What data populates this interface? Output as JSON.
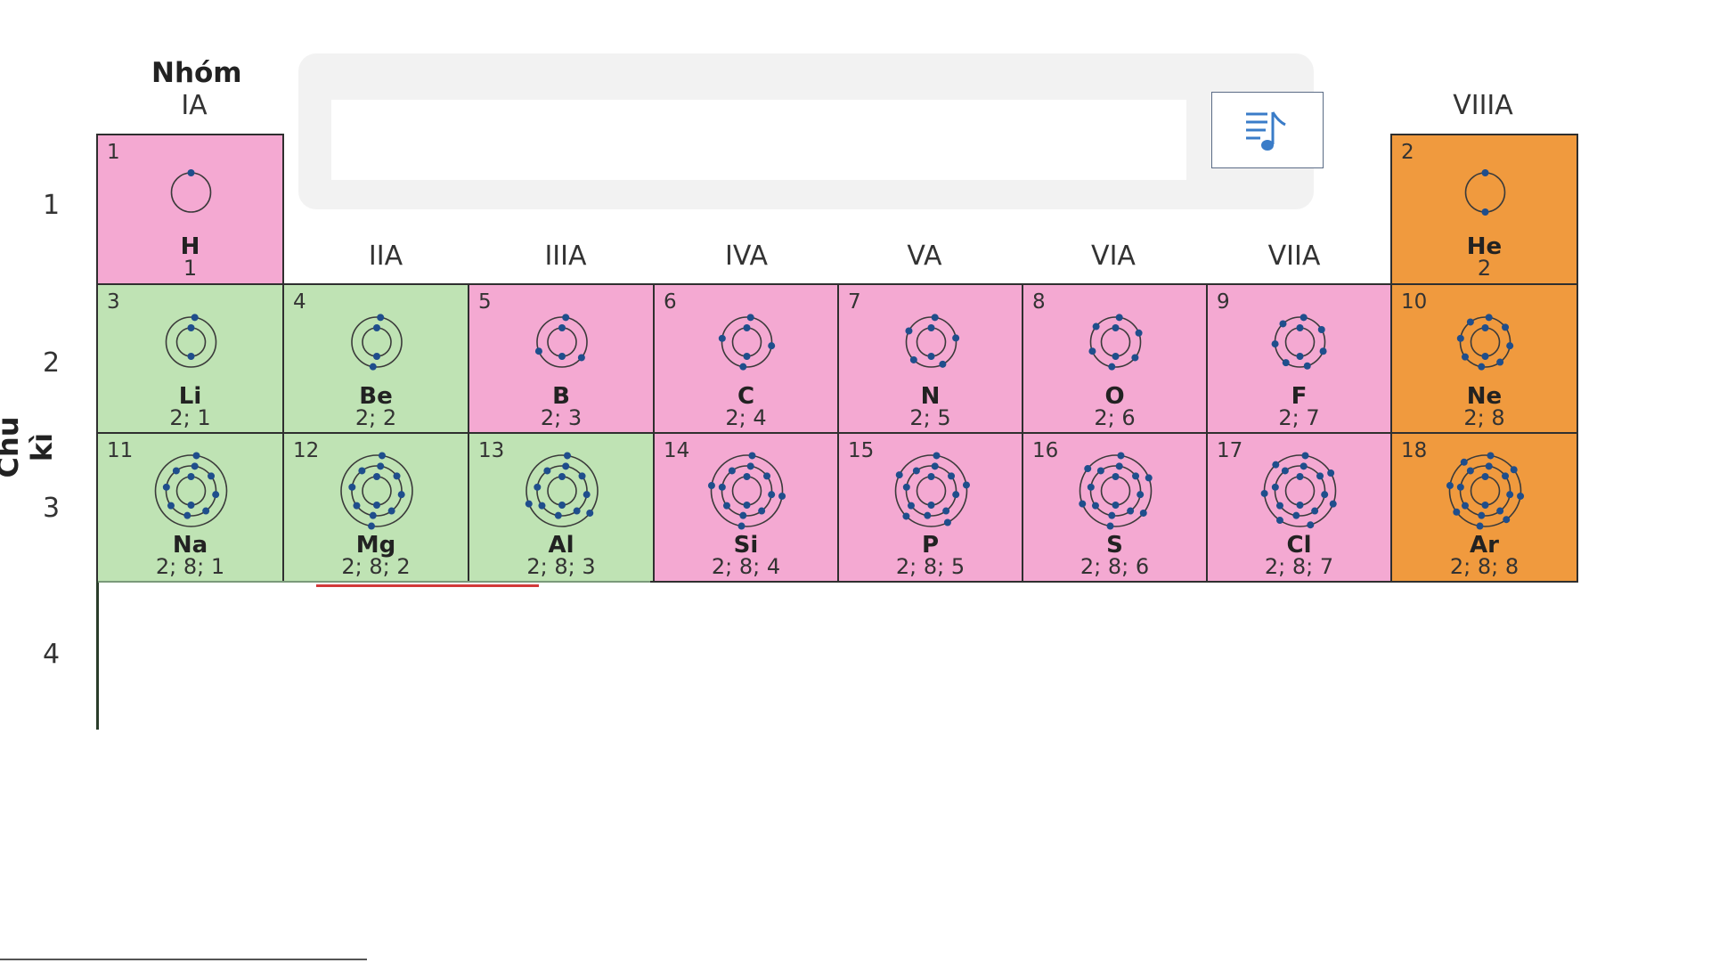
{
  "headers": {
    "group_word": "Nhóm",
    "period_word": "Chu kì"
  },
  "groups": [
    "IA",
    "IIA",
    "IIIA",
    "IVA",
    "VA",
    "VIA",
    "VIIA",
    "VIIIA"
  ],
  "periods": [
    "1",
    "2",
    "3",
    "4"
  ],
  "colors": {
    "s_block": "#bfe3b4",
    "p_block": "#f4a9d2",
    "noble": "#f09a3e",
    "hydrogen": "#f4a9d2",
    "electron": "#1f4e8c",
    "shell": "#3a3a3a"
  },
  "audio_button": {
    "icon": "audio-playlist-icon"
  },
  "elements": [
    {
      "z": "1",
      "symbol": "H",
      "config": "1",
      "period": 1,
      "group": 1,
      "color": "hydrogen"
    },
    {
      "z": "2",
      "symbol": "He",
      "config": "2",
      "period": 1,
      "group": 8,
      "color": "noble"
    },
    {
      "z": "3",
      "symbol": "Li",
      "config": "2; 1",
      "period": 2,
      "group": 1,
      "color": "s_block"
    },
    {
      "z": "4",
      "symbol": "Be",
      "config": "2; 2",
      "period": 2,
      "group": 2,
      "color": "s_block"
    },
    {
      "z": "5",
      "symbol": "B",
      "config": "2; 3",
      "period": 2,
      "group": 3,
      "color": "p_block"
    },
    {
      "z": "6",
      "symbol": "C",
      "config": "2; 4",
      "period": 2,
      "group": 4,
      "color": "p_block"
    },
    {
      "z": "7",
      "symbol": "N",
      "config": "2; 5",
      "period": 2,
      "group": 5,
      "color": "p_block"
    },
    {
      "z": "8",
      "symbol": "O",
      "config": "2; 6",
      "period": 2,
      "group": 6,
      "color": "p_block"
    },
    {
      "z": "9",
      "symbol": "F",
      "config": "2; 7",
      "period": 2,
      "group": 7,
      "color": "p_block"
    },
    {
      "z": "10",
      "symbol": "Ne",
      "config": "2; 8",
      "period": 2,
      "group": 8,
      "color": "noble"
    },
    {
      "z": "11",
      "symbol": "Na",
      "config": "2; 8; 1",
      "period": 3,
      "group": 1,
      "color": "s_block"
    },
    {
      "z": "12",
      "symbol": "Mg",
      "config": "2; 8; 2",
      "period": 3,
      "group": 2,
      "color": "s_block"
    },
    {
      "z": "13",
      "symbol": "Al",
      "config": "2; 8; 3",
      "period": 3,
      "group": 3,
      "color": "s_block"
    },
    {
      "z": "14",
      "symbol": "Si",
      "config": "2; 8; 4",
      "period": 3,
      "group": 4,
      "color": "p_block"
    },
    {
      "z": "15",
      "symbol": "P",
      "config": "2; 8; 5",
      "period": 3,
      "group": 5,
      "color": "p_block"
    },
    {
      "z": "16",
      "symbol": "S",
      "config": "2; 8; 6",
      "period": 3,
      "group": 6,
      "color": "p_block"
    },
    {
      "z": "17",
      "symbol": "Cl",
      "config": "2; 8; 7",
      "period": 3,
      "group": 7,
      "color": "p_block"
    },
    {
      "z": "18",
      "symbol": "Ar",
      "config": "2; 8; 8",
      "period": 3,
      "group": 8,
      "color": "noble"
    }
  ]
}
